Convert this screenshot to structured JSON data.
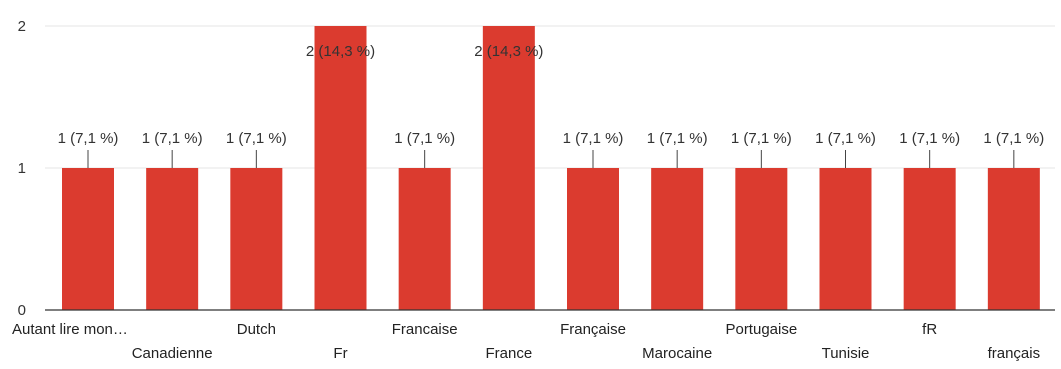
{
  "chart_data": {
    "type": "bar",
    "title": "",
    "xlabel": "",
    "ylabel": "",
    "ylim": [
      0,
      2
    ],
    "yticks": [
      "0",
      "1",
      "2"
    ],
    "grid": true,
    "legend": "none",
    "bar_color": "#db3b2f",
    "categories": [
      "Autant lire mon…",
      "Canadienne",
      "Dutch",
      "Fr",
      "Francaise",
      "France",
      "Française",
      "Marocaine",
      "Portugaise",
      "Tunisie",
      "fR",
      "français"
    ],
    "values": [
      1,
      1,
      1,
      2,
      1,
      2,
      1,
      1,
      1,
      1,
      1,
      1
    ],
    "data_labels": [
      "1 (7,1 %)",
      "1 (7,1 %)",
      "1 (7,1 %)",
      "2 (14,3 %)",
      "1 (7,1 %)",
      "2 (14,3 %)",
      "1 (7,1 %)",
      "1 (7,1 %)",
      "1 (7,1 %)",
      "1 (7,1 %)",
      "1 (7,1 %)",
      "1 (7,1 %)"
    ]
  }
}
